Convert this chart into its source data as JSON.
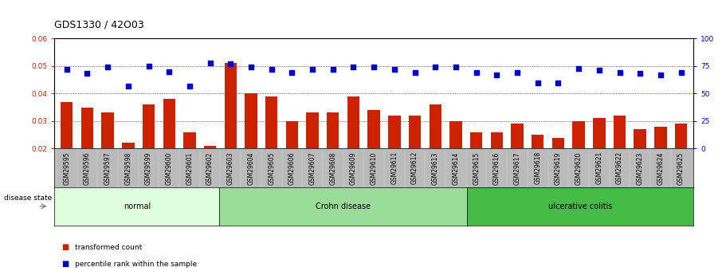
{
  "title": "GDS1330 / 42O03",
  "categories": [
    "GSM29595",
    "GSM29596",
    "GSM29597",
    "GSM29598",
    "GSM29599",
    "GSM29600",
    "GSM29601",
    "GSM29602",
    "GSM29603",
    "GSM29604",
    "GSM29605",
    "GSM29606",
    "GSM29607",
    "GSM29608",
    "GSM29609",
    "GSM29610",
    "GSM29611",
    "GSM29612",
    "GSM29613",
    "GSM29614",
    "GSM29615",
    "GSM29616",
    "GSM29617",
    "GSM29618",
    "GSM29619",
    "GSM29620",
    "GSM29621",
    "GSM29622",
    "GSM29623",
    "GSM29624",
    "GSM29625"
  ],
  "bar_values": [
    0.037,
    0.035,
    0.033,
    0.022,
    0.036,
    0.038,
    0.026,
    0.021,
    0.051,
    0.04,
    0.039,
    0.03,
    0.033,
    0.033,
    0.039,
    0.034,
    0.032,
    0.032,
    0.036,
    0.03,
    0.026,
    0.026,
    0.029,
    0.025,
    0.024,
    0.03,
    0.031,
    0.032,
    0.027,
    0.028,
    0.029
  ],
  "dot_values_pct": [
    72,
    68,
    74,
    57,
    75,
    70,
    57,
    78,
    77,
    74,
    72,
    69,
    72,
    72,
    74,
    74,
    72,
    69,
    74,
    74,
    69,
    67,
    69,
    60,
    60,
    73,
    71,
    69,
    68,
    67,
    69
  ],
  "bar_color": "#cc2200",
  "dot_color": "#0000cc",
  "ylim_left": [
    0.02,
    0.06
  ],
  "ylim_right": [
    0,
    100
  ],
  "yticks_left": [
    0.02,
    0.03,
    0.04,
    0.05,
    0.06
  ],
  "yticks_right": [
    0,
    25,
    50,
    75,
    100
  ],
  "groups": [
    {
      "label": "normal",
      "start": 0,
      "end": 8,
      "color": "#ddffdd"
    },
    {
      "label": "Crohn disease",
      "start": 8,
      "end": 20,
      "color": "#99dd99"
    },
    {
      "label": "ulcerative colitis",
      "start": 20,
      "end": 31,
      "color": "#44bb44"
    }
  ],
  "disease_state_label": "disease state",
  "legend_bar_label": "transformed count",
  "legend_dot_label": "percentile rank within the sample",
  "group_bar_bg": "#bbbbbb",
  "title_fontsize": 9,
  "tick_fontsize": 6.5
}
